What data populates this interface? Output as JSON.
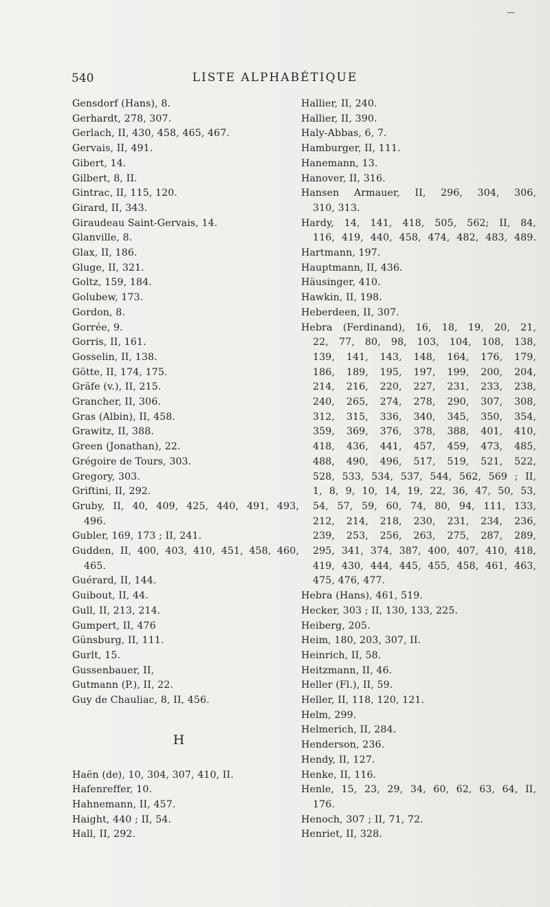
{
  "header": {
    "page_number": "540",
    "title": "LISTE ALPHABÉTIQUE"
  },
  "section_heading": "H",
  "left_column": [
    {
      "text": "Gensdorf (Hans), 8."
    },
    {
      "text": "Gerhardt, 278, 307."
    },
    {
      "text": "Gerlach, II, 430, 458, 465, 467."
    },
    {
      "text": "Gervais, II, 491."
    },
    {
      "text": "Gibert, 14."
    },
    {
      "text": "Gilbert, 8, II."
    },
    {
      "text": "Gintrac, II, 115, 120."
    },
    {
      "text": "Girard, II, 343."
    },
    {
      "text": "Giraudeau Saint-Gervais, 14."
    },
    {
      "text": "Glanville, 8."
    },
    {
      "text": "Glax, II, 186."
    },
    {
      "text": "Gluge, II, 321."
    },
    {
      "text": "Goltz, 159, 184."
    },
    {
      "text": "Golubew, 173."
    },
    {
      "text": "Gordon, 8."
    },
    {
      "text": "Gorrée, 9."
    },
    {
      "text": "Gorris, II, 161."
    },
    {
      "text": "Gosselin, II, 138."
    },
    {
      "text": "Götte, II, 174, 175."
    },
    {
      "text": "Gräfe (v.), II, 215."
    },
    {
      "text": "Grancher, II, 306."
    },
    {
      "text": "Gras (Albin), II, 458."
    },
    {
      "text": "Grawitz, II, 388."
    },
    {
      "text": "Green (Jonathan), 22."
    },
    {
      "text": "Grégoire de Tours, 303."
    },
    {
      "text": "Gregory, 303."
    },
    {
      "text": "Griftini, II, 292."
    },
    {
      "text": "Gruby, II, 40, 409, 425, 440, 491, 493,",
      "just": true
    },
    {
      "text": "496.",
      "indent": true
    },
    {
      "text": "Gubler, 169, 173 ; II, 241."
    },
    {
      "text": "Gudden, II, 400, 403, 410, 451, 458, 460,",
      "just": true
    },
    {
      "text": "465.",
      "indent": true
    },
    {
      "text": "Guérard, II, 144."
    },
    {
      "text": "Guibout, II, 44."
    },
    {
      "text": "Gull, II, 213, 214."
    },
    {
      "text": "Gumpert, II, 476"
    },
    {
      "text": "Günsburg, II, 111."
    },
    {
      "text": "Gurlt, 15."
    },
    {
      "text": "Gussenbauer, II,"
    },
    {
      "text": "Gutmann (P.), II, 22."
    },
    {
      "text": "Guy de Chauliac, 8, II, 456."
    },
    {
      "text": ""
    },
    {
      "text": ""
    },
    {
      "text": ""
    },
    {
      "text": ""
    },
    {
      "text": "Haën (de), 10, 304, 307, 410, II."
    },
    {
      "text": "Hafenreffer, 10."
    },
    {
      "text": "Hahnemann, II, 457."
    },
    {
      "text": "Haight, 440 ; II, 54."
    },
    {
      "text": "Hall, II, 292."
    }
  ],
  "right_column": [
    {
      "text": "Hallier, II, 240."
    },
    {
      "text": "Hallier, II, 390."
    },
    {
      "text": "Haly-Abbas, 6, 7."
    },
    {
      "text": "Hamburger, II, 111."
    },
    {
      "text": "Hanemann, 13."
    },
    {
      "text": "Hanover, II, 316."
    },
    {
      "text": "Hansen Armauer, II, 296, 304, 306,",
      "just": true
    },
    {
      "text": "310, 313.",
      "indent": true
    },
    {
      "text": "Hardy, 14, 141, 418, 505, 562; II, 84,",
      "just": true
    },
    {
      "text": "116, 419, 440, 458, 474, 482, 483, 489.",
      "indent": true,
      "just": true
    },
    {
      "text": "Hartmann, 197."
    },
    {
      "text": "Hauptmann, II, 436."
    },
    {
      "text": "Häusinger, 410."
    },
    {
      "text": "Hawkin, II, 198."
    },
    {
      "text": "Heberdeen, II, 307."
    },
    {
      "text": "Hebra (Ferdinand), 16, 18, 19, 20, 21,",
      "just": true
    },
    {
      "text": "22, 77, 80, 98, 103, 104, 108, 138,",
      "indent": true,
      "just": true
    },
    {
      "text": "139, 141, 143, 148, 164, 176, 179,",
      "indent": true,
      "just": true
    },
    {
      "text": "186, 189, 195, 197, 199, 200, 204,",
      "indent": true,
      "just": true
    },
    {
      "text": "214, 216, 220, 227, 231, 233, 238,",
      "indent": true,
      "just": true
    },
    {
      "text": "240, 265, 274, 278, 290, 307, 308,",
      "indent": true,
      "just": true
    },
    {
      "text": "312, 315, 336, 340, 345, 350, 354,",
      "indent": true,
      "just": true
    },
    {
      "text": "359, 369, 376, 378, 388, 401, 410,",
      "indent": true,
      "just": true
    },
    {
      "text": "418, 436, 441, 457, 459, 473, 485,",
      "indent": true,
      "just": true
    },
    {
      "text": "488, 490, 496, 517, 519, 521, 522,",
      "indent": true,
      "just": true
    },
    {
      "text": "528, 533, 534, 537, 544, 562, 569 ; II,",
      "indent": true,
      "just": true
    },
    {
      "text": "1, 8, 9, 10, 14, 19, 22, 36, 47, 50, 53,",
      "indent": true,
      "just": true
    },
    {
      "text": "54, 57, 59, 60, 74, 80, 94, 111, 133,",
      "indent": true,
      "just": true
    },
    {
      "text": "212, 214, 218, 230, 231, 234, 236,",
      "indent": true,
      "just": true
    },
    {
      "text": "239, 253, 256, 263, 275, 287, 289,",
      "indent": true,
      "just": true
    },
    {
      "text": "295, 341, 374, 387, 400, 407, 410, 418,",
      "indent": true,
      "just": true
    },
    {
      "text": "419, 430, 444, 445, 455, 458, 461, 463,",
      "indent": true,
      "just": true
    },
    {
      "text": "475, 476, 477.",
      "indent": true
    },
    {
      "text": "Hebra (Hans), 461, 519."
    },
    {
      "text": "Hecker, 303 ; II, 130, 133, 225."
    },
    {
      "text": "Heiberg, 205."
    },
    {
      "text": "Heim, 180, 203, 307, II."
    },
    {
      "text": "Heinrich, II, 58."
    },
    {
      "text": "Heitzmann, II, 46."
    },
    {
      "text": "Heller (Fl.), II, 59."
    },
    {
      "text": "Heller, II, 118, 120, 121."
    },
    {
      "text": "Helm, 299."
    },
    {
      "text": "Helmerich, II, 284."
    },
    {
      "text": "Henderson, 236."
    },
    {
      "text": "Hendy, II, 127."
    },
    {
      "text": "Henke, II, 116."
    },
    {
      "text": "Henle, 15, 23, 29, 34, 60, 62, 63, 64, II,",
      "just": true
    },
    {
      "text": "176.",
      "indent": true
    },
    {
      "text": "Henoch, 307 ; II, 71, 72."
    },
    {
      "text": "Henriet, II, 328."
    }
  ]
}
